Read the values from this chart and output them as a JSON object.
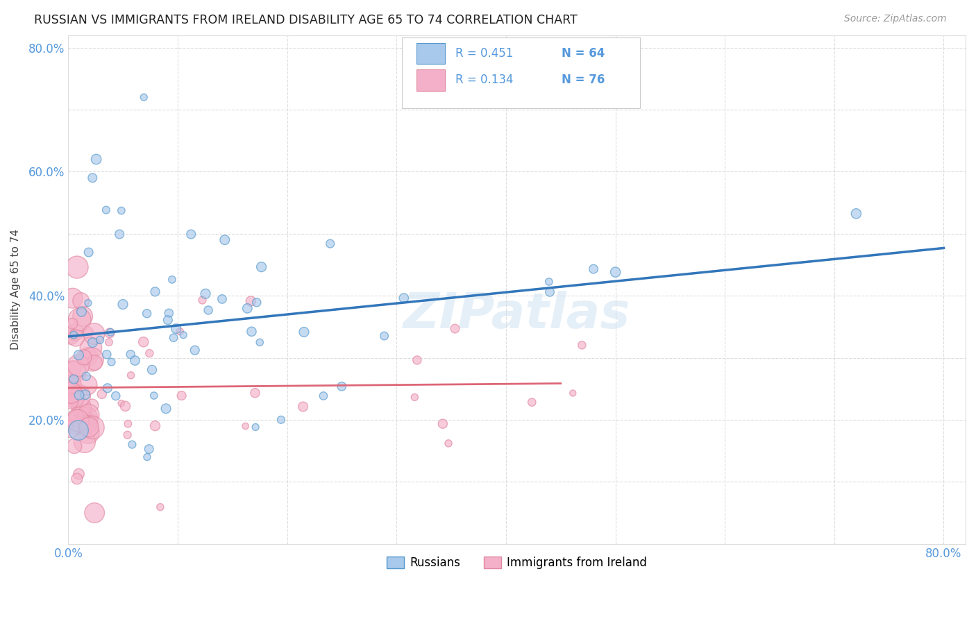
{
  "title": "RUSSIAN VS IMMIGRANTS FROM IRELAND DISABILITY AGE 65 TO 74 CORRELATION CHART",
  "source": "Source: ZipAtlas.com",
  "ylabel": "Disability Age 65 to 74",
  "xlim": [
    0.0,
    0.82
  ],
  "ylim": [
    0.0,
    0.82
  ],
  "xtick_positions": [
    0.0,
    0.1,
    0.2,
    0.3,
    0.4,
    0.5,
    0.6,
    0.7,
    0.8
  ],
  "ytick_positions": [
    0.0,
    0.1,
    0.2,
    0.3,
    0.4,
    0.5,
    0.6,
    0.7,
    0.8
  ],
  "xtick_labels": [
    "0.0%",
    "",
    "",
    "",
    "",
    "",
    "",
    "",
    "80.0%"
  ],
  "ytick_labels": [
    "",
    "",
    "20.0%",
    "",
    "40.0%",
    "",
    "60.0%",
    "",
    "80.0%"
  ],
  "background_color": "#ffffff",
  "grid_color": "#dddddd",
  "watermark_text": "ZIPatlas",
  "legend_R_blue": "R = 0.451",
  "legend_N_blue": "N = 64",
  "legend_R_pink": "R = 0.134",
  "legend_N_pink": "N = 76",
  "blue_fill": "#a8c8ec",
  "pink_fill": "#f4b0c8",
  "blue_edge": "#5599cc",
  "pink_edge": "#e088a0",
  "blue_line": "#3377bb",
  "pink_line": "#dd6677",
  "gray_dash": "#c0c0c0",
  "tick_color": "#5599dd",
  "label_russians": "Russians",
  "label_ireland": "Immigrants from Ireland",
  "seed_rus": 10,
  "seed_ire": 99,
  "n_rus": 64,
  "n_ire": 76
}
